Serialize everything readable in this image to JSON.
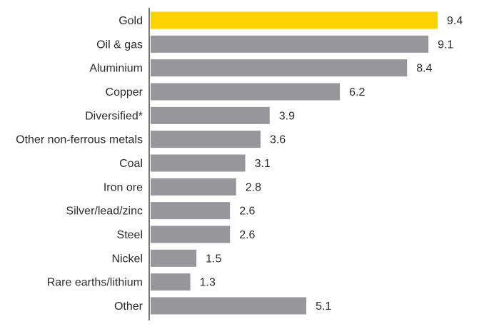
{
  "chart_data": {
    "type": "bar",
    "orientation": "horizontal",
    "title": "",
    "xlabel": "",
    "ylabel": "",
    "xlim": [
      0,
      9.4
    ],
    "grid": false,
    "legend": "none",
    "categories": [
      "Gold",
      "Oil & gas",
      "Aluminium",
      "Copper",
      "Diversified*",
      "Other non-ferrous metals",
      "Coal",
      "Iron ore",
      "Silver/lead/zinc",
      "Steel",
      "Nickel",
      "Rare earths/lithium",
      "Other"
    ],
    "values": [
      9.4,
      9.1,
      8.4,
      6.2,
      3.9,
      3.6,
      3.1,
      2.8,
      2.6,
      2.6,
      1.5,
      1.3,
      5.1
    ],
    "value_labels": [
      "9.4",
      "9.1",
      "8.4",
      "6.2",
      "3.9",
      "3.6",
      "3.1",
      "2.8",
      "2.6",
      "2.6",
      "1.5",
      "1.3",
      "5.1"
    ],
    "highlight_category": "Gold",
    "colors": {
      "highlight": "#ffd200",
      "bar": "#97969b",
      "axis": "#1a1a1a",
      "text": "#2b2b2b"
    }
  }
}
